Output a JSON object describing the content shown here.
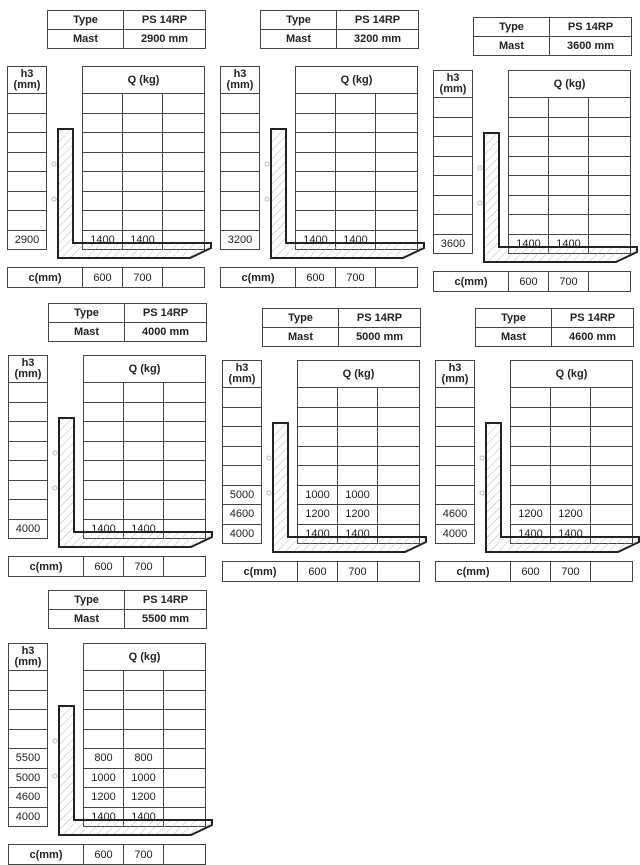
{
  "labels": {
    "type": "Type",
    "mast": "Mast",
    "h3": "h3\n(mm)",
    "h3_line1": "h3",
    "h3_line2": "(mm)",
    "q": "Q (kg)",
    "c": "c(mm)",
    "c_values": [
      "600",
      "700",
      ""
    ]
  },
  "panels": [
    {
      "type": "PS 14RP",
      "mast": "2900 mm",
      "rows": [
        [
          "2900",
          "1400",
          "1400"
        ]
      ]
    },
    {
      "type": "PS 14RP",
      "mast": "3200 mm",
      "rows": [
        [
          "3200",
          "1400",
          "1400"
        ]
      ]
    },
    {
      "type": "PS 14RP",
      "mast": "3600 mm",
      "rows": [
        [
          "3600",
          "1400",
          "1400"
        ]
      ]
    },
    {
      "type": "PS 14RP",
      "mast": "4000 mm",
      "rows": [
        [
          "4000",
          "1400",
          "1400"
        ]
      ]
    },
    {
      "type": "PS 14RP",
      "mast": "5000 mm",
      "rows": [
        [
          "5000",
          "1000",
          "1000"
        ],
        [
          "4600",
          "1200",
          "1200"
        ],
        [
          "4000",
          "1400",
          "1400"
        ]
      ]
    },
    {
      "type": "PS 14RP",
      "mast": "4600 mm",
      "rows": [
        [
          "4600",
          "1200",
          "1200"
        ],
        [
          "4000",
          "1400",
          "1400"
        ]
      ]
    },
    {
      "type": "PS 14RP",
      "mast": "5500 mm",
      "rows": [
        [
          "5500",
          "800",
          "800"
        ],
        [
          "5000",
          "1000",
          "1000"
        ],
        [
          "4600",
          "1200",
          "1200"
        ],
        [
          "4000",
          "1400",
          "1400"
        ]
      ]
    }
  ]
}
